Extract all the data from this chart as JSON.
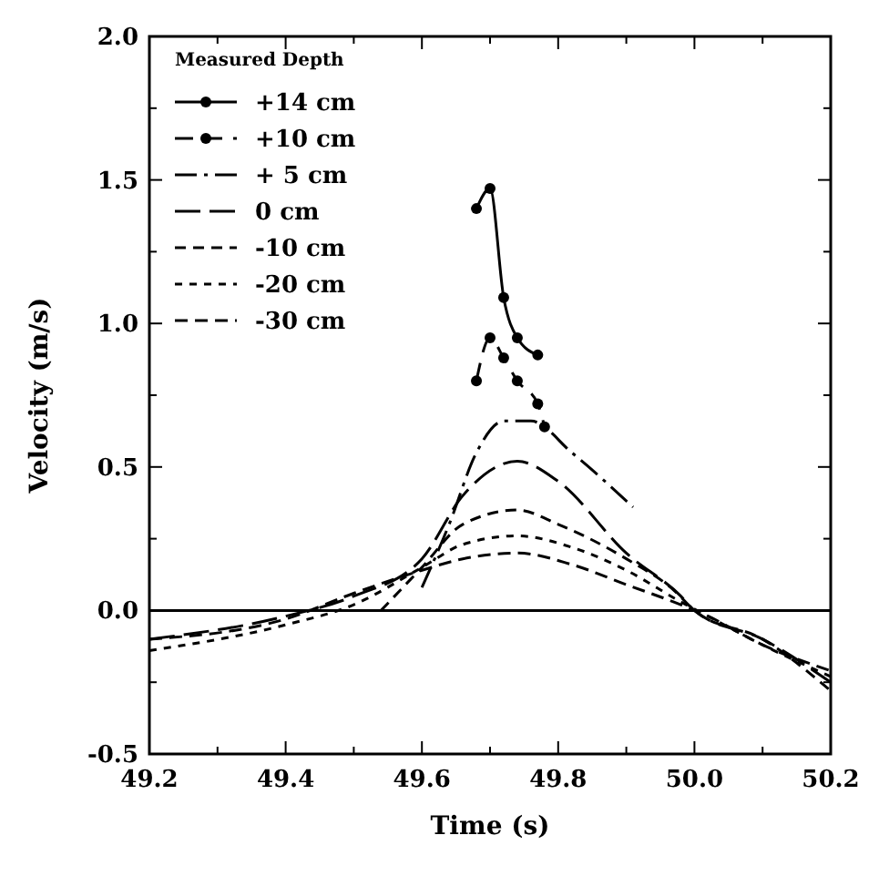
{
  "chart_data": {
    "type": "line",
    "xlabel": "Time (s)",
    "ylabel": "Velocity (m/s)",
    "legend_title": "Measured Depth",
    "legend": "top left",
    "grid": false,
    "xlim": [
      49.2,
      50.2
    ],
    "xticks": [
      49.2,
      {
        "value": 49.3,
        "label": null
      },
      49.4,
      {
        "value": 49.5,
        "label": null
      },
      49.6,
      {
        "value": 49.7,
        "label": null
      },
      49.8,
      {
        "value": 49.9,
        "label": null
      },
      "50.0",
      {
        "value": 50.1,
        "label": null
      },
      50.2
    ],
    "ylim": [
      -0.5,
      2.0
    ],
    "yticks": [
      -0.5,
      {
        "value": -0.25,
        "label": null
      },
      "0.0",
      {
        "value": 0.25,
        "label": null
      },
      0.5,
      {
        "value": 0.75,
        "label": null
      },
      "1.0",
      {
        "value": 1.25,
        "label": null
      },
      1.5,
      {
        "value": 1.75,
        "label": null
      },
      "2.0"
    ],
    "ref_lines": [
      {
        "axis": "y",
        "value": 0,
        "label": null,
        "color": "#000000",
        "line_style": "solid"
      }
    ],
    "series": [
      {
        "name": "+14 cm",
        "color": "#000000",
        "line_style": "solid",
        "marker": "circle",
        "x": [
          49.68,
          49.7,
          49.72,
          49.74,
          49.77
        ],
        "values": [
          1.4,
          1.47,
          1.09,
          0.95,
          0.89
        ]
      },
      {
        "name": "+10 cm",
        "color": "#000000",
        "line_style": "dashed",
        "marker": "circle",
        "x": [
          49.68,
          49.7,
          49.72,
          49.74,
          49.77,
          49.78
        ],
        "values": [
          0.8,
          0.95,
          0.88,
          0.8,
          0.72,
          0.64
        ]
      },
      {
        "name": "+ 5 cm",
        "color": "#000000",
        "line_style": "dashed",
        "marker": "none",
        "x": [
          49.6,
          49.64,
          49.68,
          49.72,
          49.76,
          49.82,
          49.91
        ],
        "values": [
          0.08,
          0.3,
          0.55,
          0.66,
          0.66,
          0.55,
          0.36
        ]
      },
      {
        "name": "0 cm",
        "color": "#000000",
        "line_style": "dashed",
        "marker": "none",
        "x": [
          49.2,
          49.4,
          49.5,
          49.6,
          49.66,
          49.74,
          49.8,
          49.9,
          49.98,
          50.0,
          50.1,
          50.2
        ],
        "values": [
          -0.1,
          -0.02,
          0.05,
          0.18,
          0.4,
          0.52,
          0.45,
          0.2,
          0.05,
          0.0,
          -0.1,
          -0.25
        ]
      },
      {
        "name": "-10 cm",
        "color": "#000000",
        "line_style": "dashed",
        "marker": "none",
        "x": [
          49.54,
          49.6,
          49.66,
          49.74,
          49.8,
          49.9,
          49.97,
          50.0,
          50.1,
          50.2
        ],
        "values": [
          0.0,
          0.15,
          0.3,
          0.35,
          0.3,
          0.18,
          0.07,
          0.0,
          -0.1,
          -0.28
        ]
      },
      {
        "name": "-20 cm",
        "color": "#000000",
        "line_style": "dotted",
        "marker": "none",
        "x": [
          49.2,
          49.4,
          49.5,
          49.6,
          49.66,
          49.74,
          49.82,
          49.9,
          49.98,
          50.02,
          50.1,
          50.2
        ],
        "values": [
          -0.14,
          -0.05,
          0.02,
          0.15,
          0.23,
          0.26,
          0.22,
          0.14,
          0.03,
          -0.02,
          -0.12,
          -0.23
        ]
      },
      {
        "name": "-30 cm",
        "color": "#000000",
        "line_style": "dashed",
        "marker": "none",
        "x": [
          49.2,
          49.4,
          49.5,
          49.6,
          49.66,
          49.74,
          49.82,
          49.9,
          49.98,
          50.02,
          50.1,
          50.2
        ],
        "values": [
          -0.1,
          -0.03,
          0.06,
          0.14,
          0.18,
          0.2,
          0.16,
          0.09,
          0.02,
          -0.02,
          -0.12,
          -0.21
        ]
      }
    ]
  }
}
